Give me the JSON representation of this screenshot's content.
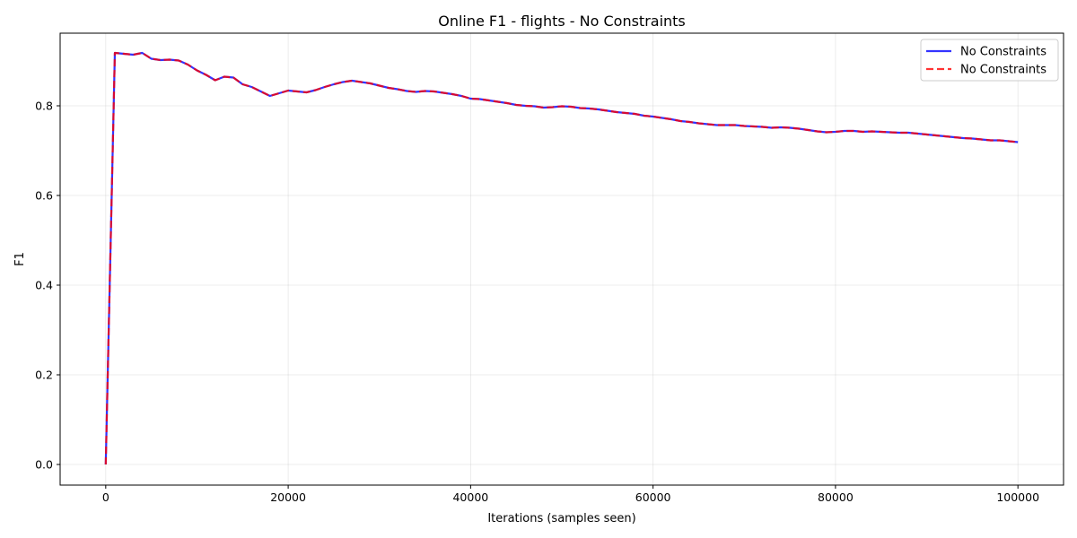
{
  "chart_data": {
    "type": "line",
    "title": "Online F1 - flights - No Constraints",
    "xlabel": "Iterations (samples seen)",
    "ylabel": "F1",
    "xlim": [
      -5000,
      105000
    ],
    "ylim": [
      -0.046,
      0.962
    ],
    "x_ticks": [
      0,
      20000,
      40000,
      60000,
      80000,
      100000
    ],
    "x_tick_labels": [
      "0",
      "20000",
      "40000",
      "60000",
      "80000",
      "100000"
    ],
    "y_ticks": [
      0.0,
      0.2,
      0.4,
      0.6,
      0.8
    ],
    "y_tick_labels": [
      "0.0",
      "0.2",
      "0.4",
      "0.6",
      "0.8"
    ],
    "grid": true,
    "legend_position": "top-right",
    "x": [
      0,
      1000,
      2000,
      3000,
      4000,
      5000,
      6000,
      7000,
      8000,
      9000,
      10000,
      11000,
      12000,
      13000,
      14000,
      15000,
      16000,
      17000,
      18000,
      19000,
      20000,
      21000,
      22000,
      23000,
      24000,
      25000,
      26000,
      27000,
      28000,
      29000,
      30000,
      31000,
      32000,
      33000,
      34000,
      35000,
      36000,
      37000,
      38000,
      39000,
      40000,
      41000,
      42000,
      43000,
      44000,
      45000,
      46000,
      47000,
      48000,
      49000,
      50000,
      51000,
      52000,
      53000,
      54000,
      55000,
      56000,
      57000,
      58000,
      59000,
      60000,
      61000,
      62000,
      63000,
      64000,
      65000,
      66000,
      67000,
      68000,
      69000,
      70000,
      71000,
      72000,
      73000,
      74000,
      75000,
      76000,
      77000,
      78000,
      79000,
      80000,
      81000,
      82000,
      83000,
      84000,
      85000,
      86000,
      87000,
      88000,
      89000,
      90000,
      91000,
      92000,
      93000,
      94000,
      95000,
      96000,
      97000,
      98000,
      99000,
      100000
    ],
    "series": [
      {
        "name": "No Constraints",
        "color": "#0000ff",
        "style": "solid",
        "values": [
          0.0,
          0.918,
          0.916,
          0.914,
          0.918,
          0.905,
          0.902,
          0.903,
          0.901,
          0.892,
          0.879,
          0.869,
          0.857,
          0.865,
          0.863,
          0.848,
          0.842,
          0.832,
          0.822,
          0.828,
          0.834,
          0.832,
          0.83,
          0.835,
          0.842,
          0.848,
          0.853,
          0.856,
          0.853,
          0.85,
          0.845,
          0.84,
          0.837,
          0.833,
          0.831,
          0.833,
          0.832,
          0.829,
          0.826,
          0.822,
          0.816,
          0.815,
          0.812,
          0.809,
          0.806,
          0.802,
          0.8,
          0.799,
          0.796,
          0.797,
          0.799,
          0.798,
          0.795,
          0.794,
          0.792,
          0.789,
          0.786,
          0.784,
          0.782,
          0.778,
          0.776,
          0.773,
          0.77,
          0.766,
          0.764,
          0.761,
          0.759,
          0.757,
          0.757,
          0.757,
          0.755,
          0.754,
          0.753,
          0.751,
          0.752,
          0.751,
          0.749,
          0.746,
          0.743,
          0.741,
          0.742,
          0.744,
          0.744,
          0.742,
          0.743,
          0.742,
          0.741,
          0.74,
          0.74,
          0.738,
          0.736,
          0.734,
          0.732,
          0.73,
          0.728,
          0.727,
          0.725,
          0.723,
          0.723,
          0.721,
          0.719
        ]
      },
      {
        "name": "No Constraints",
        "color": "#ff0000",
        "style": "dashed",
        "values": [
          0.0,
          0.918,
          0.916,
          0.914,
          0.918,
          0.905,
          0.902,
          0.903,
          0.901,
          0.892,
          0.879,
          0.869,
          0.857,
          0.865,
          0.863,
          0.848,
          0.842,
          0.832,
          0.822,
          0.828,
          0.834,
          0.832,
          0.83,
          0.835,
          0.842,
          0.848,
          0.853,
          0.856,
          0.853,
          0.85,
          0.845,
          0.84,
          0.837,
          0.833,
          0.831,
          0.833,
          0.832,
          0.829,
          0.826,
          0.822,
          0.816,
          0.815,
          0.812,
          0.809,
          0.806,
          0.802,
          0.8,
          0.799,
          0.796,
          0.797,
          0.799,
          0.798,
          0.795,
          0.794,
          0.792,
          0.789,
          0.786,
          0.784,
          0.782,
          0.778,
          0.776,
          0.773,
          0.77,
          0.766,
          0.764,
          0.761,
          0.759,
          0.757,
          0.757,
          0.757,
          0.755,
          0.754,
          0.753,
          0.751,
          0.752,
          0.751,
          0.749,
          0.746,
          0.743,
          0.741,
          0.742,
          0.744,
          0.744,
          0.742,
          0.743,
          0.742,
          0.741,
          0.74,
          0.74,
          0.738,
          0.736,
          0.734,
          0.732,
          0.73,
          0.728,
          0.727,
          0.725,
          0.723,
          0.723,
          0.721,
          0.719
        ]
      }
    ]
  }
}
